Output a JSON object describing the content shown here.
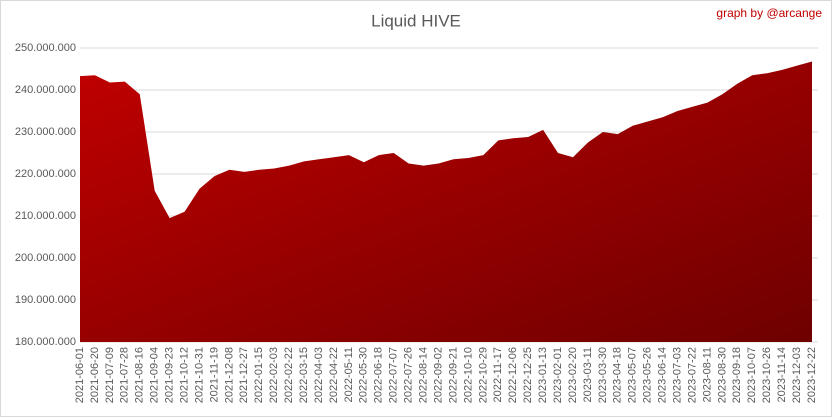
{
  "chart_data": {
    "type": "area",
    "title": "Liquid HIVE",
    "annotation": "graph by @arcange",
    "color": "#c00000",
    "categories": [
      "2021-06-01",
      "2021-06-20",
      "2021-07-09",
      "2021-07-28",
      "2021-08-16",
      "2021-09-04",
      "2021-09-23",
      "2021-10-12",
      "2021-10-31",
      "2021-11-19",
      "2021-12-08",
      "2021-12-27",
      "2022-01-15",
      "2022-02-03",
      "2022-02-22",
      "2022-03-15",
      "2022-04-03",
      "2022-04-22",
      "2022-05-11",
      "2022-05-30",
      "2022-06-18",
      "2022-07-07",
      "2022-07-26",
      "2022-08-14",
      "2022-09-02",
      "2022-09-21",
      "2022-10-10",
      "2022-10-29",
      "2022-11-17",
      "2022-12-06",
      "2022-12-25",
      "2023-01-13",
      "2023-02-01",
      "2023-02-20",
      "2023-03-11",
      "2023-03-30",
      "2023-04-18",
      "2023-05-07",
      "2023-05-26",
      "2023-06-14",
      "2023-07-03",
      "2023-07-22",
      "2023-08-11",
      "2023-08-30",
      "2023-09-18",
      "2023-10-07",
      "2023-10-26",
      "2023-11-14",
      "2023-12-03",
      "2023-12-22"
    ],
    "values": [
      243300000,
      243500000,
      241800000,
      242000000,
      239000000,
      216000000,
      209500000,
      211000000,
      216500000,
      219500000,
      221000000,
      220500000,
      221000000,
      221300000,
      222000000,
      223000000,
      223500000,
      224000000,
      224500000,
      222800000,
      224500000,
      225000000,
      222500000,
      222000000,
      222500000,
      223500000,
      223800000,
      224500000,
      228000000,
      228500000,
      228800000,
      230500000,
      225000000,
      224000000,
      227500000,
      230000000,
      229500000,
      231500000,
      232500000,
      233500000,
      235000000,
      236000000,
      237000000,
      239000000,
      241500000,
      243500000,
      244000000,
      244800000,
      245800000,
      246800000
    ],
    "ylim": [
      180000000,
      250000000
    ],
    "yticks": [
      {
        "value": 180000000,
        "label": "180.000.000"
      },
      {
        "value": 190000000,
        "label": "190.000.000"
      },
      {
        "value": 200000000,
        "label": "200.000.000"
      },
      {
        "value": 210000000,
        "label": "210.000.000"
      },
      {
        "value": 220000000,
        "label": "220.000.000"
      },
      {
        "value": 230000000,
        "label": "230.000.000"
      },
      {
        "value": 240000000,
        "label": "240.000.000"
      },
      {
        "value": 250000000,
        "label": "250.000.000"
      }
    ],
    "grid": true
  }
}
